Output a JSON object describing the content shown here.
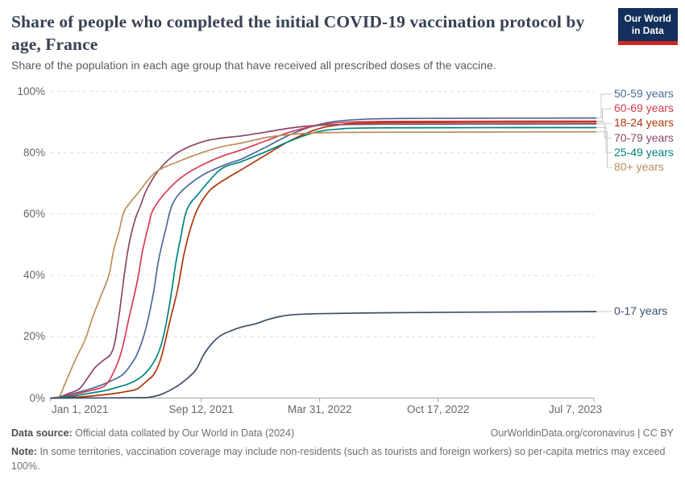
{
  "header": {
    "title": "Share of people who completed the initial COVID-19 vaccination protocol by age, France",
    "subtitle": "Share of the population in each age group that have received all prescribed doses of the vaccine.",
    "logo": {
      "line1": "Our World",
      "line2": "in Data",
      "bg_color": "#12305b",
      "bar_color": "#cd281f"
    }
  },
  "footer": {
    "datasource_label": "Data source:",
    "datasource_text": "Official data collated by Our World in Data (2024)",
    "license": "OurWorldinData.org/coronavirus | CC BY",
    "note_label": "Note:",
    "note_text": "In some territories, vaccination coverage may include non-residents (such as tourists and foreign workers) so per-capita metrics may exceed 100%."
  },
  "chart_data": {
    "type": "line",
    "title": "Share of people who completed the initial COVID-19 vaccination protocol by age, France",
    "xlabel": "",
    "ylabel": "",
    "x_unit": "days since 2021-01-01",
    "x_domain": [
      0,
      917
    ],
    "ylim": [
      0,
      100
    ],
    "grid": "horizontal dashed",
    "legend_position": "right",
    "x_ticks": [
      {
        "day": 0,
        "label": "Jan 1, 2021"
      },
      {
        "day": 254,
        "label": "Sep 12, 2021"
      },
      {
        "day": 454,
        "label": "Mar 31, 2022"
      },
      {
        "day": 654,
        "label": "Oct 17, 2022"
      },
      {
        "day": 917,
        "label": "Jul 7, 2023"
      }
    ],
    "y_ticks": [
      "0%",
      "20%",
      "40%",
      "60%",
      "80%",
      "100%"
    ],
    "series": [
      {
        "name": "50-59 years",
        "color": "#4C6A9C",
        "legend": "stacked",
        "final_value": 91.3,
        "points": [
          [
            0,
            0
          ],
          [
            15,
            0.3
          ],
          [
            45,
            1.8
          ],
          [
            70,
            3.2
          ],
          [
            95,
            5
          ],
          [
            119,
            7.3
          ],
          [
            132,
            10
          ],
          [
            146,
            14.4
          ],
          [
            160,
            22.3
          ],
          [
            173,
            34
          ],
          [
            182,
            45
          ],
          [
            194,
            55
          ],
          [
            205,
            63
          ],
          [
            224,
            68
          ],
          [
            259,
            73
          ],
          [
            300,
            76.5
          ],
          [
            323,
            78
          ],
          [
            365,
            82
          ],
          [
            400,
            85.5
          ],
          [
            440,
            88.5
          ],
          [
            480,
            90.2
          ],
          [
            540,
            91
          ],
          [
            650,
            91.2
          ],
          [
            917,
            91.3
          ]
        ]
      },
      {
        "name": "60-69 years",
        "color": "#D73C50",
        "legend": "stacked",
        "final_value": 90.3,
        "points": [
          [
            0,
            0
          ],
          [
            20,
            0.5
          ],
          [
            45,
            1.5
          ],
          [
            70,
            2.6
          ],
          [
            91,
            4
          ],
          [
            105,
            8
          ],
          [
            119,
            15
          ],
          [
            132,
            26
          ],
          [
            146,
            38
          ],
          [
            155,
            48
          ],
          [
            166,
            57
          ],
          [
            173,
            61.5
          ],
          [
            196,
            67.5
          ],
          [
            228,
            73
          ],
          [
            278,
            78
          ],
          [
            323,
            81
          ],
          [
            365,
            84
          ],
          [
            400,
            86.5
          ],
          [
            440,
            88.5
          ],
          [
            480,
            89.7
          ],
          [
            560,
            90.2
          ],
          [
            917,
            90.3
          ]
        ]
      },
      {
        "name": "18-24 years",
        "color": "#B13507",
        "legend": "stacked",
        "final_value": 90.0,
        "points": [
          [
            0,
            0
          ],
          [
            50,
            0.4
          ],
          [
            100,
            1.3
          ],
          [
            130,
            2.2
          ],
          [
            146,
            3
          ],
          [
            160,
            5.2
          ],
          [
            175,
            8
          ],
          [
            187,
            13.6
          ],
          [
            201,
            25
          ],
          [
            214,
            35.3
          ],
          [
            225,
            47
          ],
          [
            237,
            56
          ],
          [
            250,
            62.5
          ],
          [
            270,
            68
          ],
          [
            300,
            72
          ],
          [
            323,
            74.6
          ],
          [
            365,
            79.5
          ],
          [
            400,
            83.5
          ],
          [
            440,
            87
          ],
          [
            480,
            88.9
          ],
          [
            560,
            89.8
          ],
          [
            917,
            90
          ]
        ]
      },
      {
        "name": "70-79 years",
        "color": "#8C4569",
        "legend": "stacked",
        "final_value": 89.4,
        "points": [
          [
            0,
            0
          ],
          [
            15,
            0.4
          ],
          [
            30,
            1.5
          ],
          [
            48,
            3
          ],
          [
            62,
            6.5
          ],
          [
            75,
            10
          ],
          [
            90,
            12.5
          ],
          [
            100,
            14
          ],
          [
            108,
            18
          ],
          [
            116,
            28
          ],
          [
            124,
            40
          ],
          [
            132,
            50
          ],
          [
            142,
            58
          ],
          [
            152,
            63
          ],
          [
            162,
            68
          ],
          [
            183,
            74.5
          ],
          [
            214,
            80
          ],
          [
            255,
            83.5
          ],
          [
            290,
            84.8
          ],
          [
            323,
            85.5
          ],
          [
            365,
            86.8
          ],
          [
            410,
            88.2
          ],
          [
            460,
            89
          ],
          [
            560,
            89.3
          ],
          [
            917,
            89.4
          ]
        ]
      },
      {
        "name": "25-49 years",
        "color": "#00847E",
        "legend": "stacked",
        "final_value": 88.2,
        "points": [
          [
            0,
            0
          ],
          [
            30,
            0.5
          ],
          [
            60,
            1.4
          ],
          [
            90,
            2.4
          ],
          [
            110,
            3.4
          ],
          [
            132,
            4.7
          ],
          [
            150,
            6.5
          ],
          [
            166,
            9.5
          ],
          [
            180,
            14
          ],
          [
            190,
            20
          ],
          [
            201,
            31
          ],
          [
            211,
            44
          ],
          [
            220,
            53
          ],
          [
            230,
            61.5
          ],
          [
            251,
            67
          ],
          [
            287,
            74.6
          ],
          [
            323,
            77.2
          ],
          [
            365,
            80.5
          ],
          [
            400,
            83.5
          ],
          [
            440,
            86.3
          ],
          [
            480,
            87.6
          ],
          [
            560,
            88.1
          ],
          [
            917,
            88.2
          ]
        ]
      },
      {
        "name": "80+ years",
        "color": "#BC8E5A",
        "legend": "stacked",
        "final_value": 86.8,
        "points": [
          [
            0,
            0
          ],
          [
            10,
            0.2
          ],
          [
            16,
            1
          ],
          [
            27,
            6
          ],
          [
            44,
            13.5
          ],
          [
            58,
            19
          ],
          [
            71,
            26.5
          ],
          [
            85,
            33.5
          ],
          [
            98,
            40
          ],
          [
            106,
            48
          ],
          [
            116,
            55
          ],
          [
            123,
            60.5
          ],
          [
            135,
            64
          ],
          [
            146,
            66.5
          ],
          [
            176,
            73.5
          ],
          [
            214,
            77
          ],
          [
            255,
            80
          ],
          [
            290,
            82
          ],
          [
            323,
            83.2
          ],
          [
            365,
            85
          ],
          [
            420,
            86.2
          ],
          [
            480,
            86.6
          ],
          [
            600,
            86.7
          ],
          [
            917,
            86.8
          ]
        ]
      },
      {
        "name": "0-17 years",
        "color": "#3C4E66",
        "legend": "inline",
        "final_value": 28.2,
        "points": [
          [
            0,
            0
          ],
          [
            140,
            0.1
          ],
          [
            170,
            0.4
          ],
          [
            190,
            1.5
          ],
          [
            210,
            3.5
          ],
          [
            228,
            6
          ],
          [
            245,
            9.2
          ],
          [
            259,
            14.4
          ],
          [
            273,
            18
          ],
          [
            287,
            20.4
          ],
          [
            305,
            22
          ],
          [
            323,
            23.2
          ],
          [
            345,
            24.2
          ],
          [
            365,
            25.5
          ],
          [
            385,
            26.5
          ],
          [
            405,
            27.1
          ],
          [
            450,
            27.5
          ],
          [
            550,
            27.8
          ],
          [
            700,
            28
          ],
          [
            917,
            28.2
          ]
        ]
      }
    ]
  }
}
